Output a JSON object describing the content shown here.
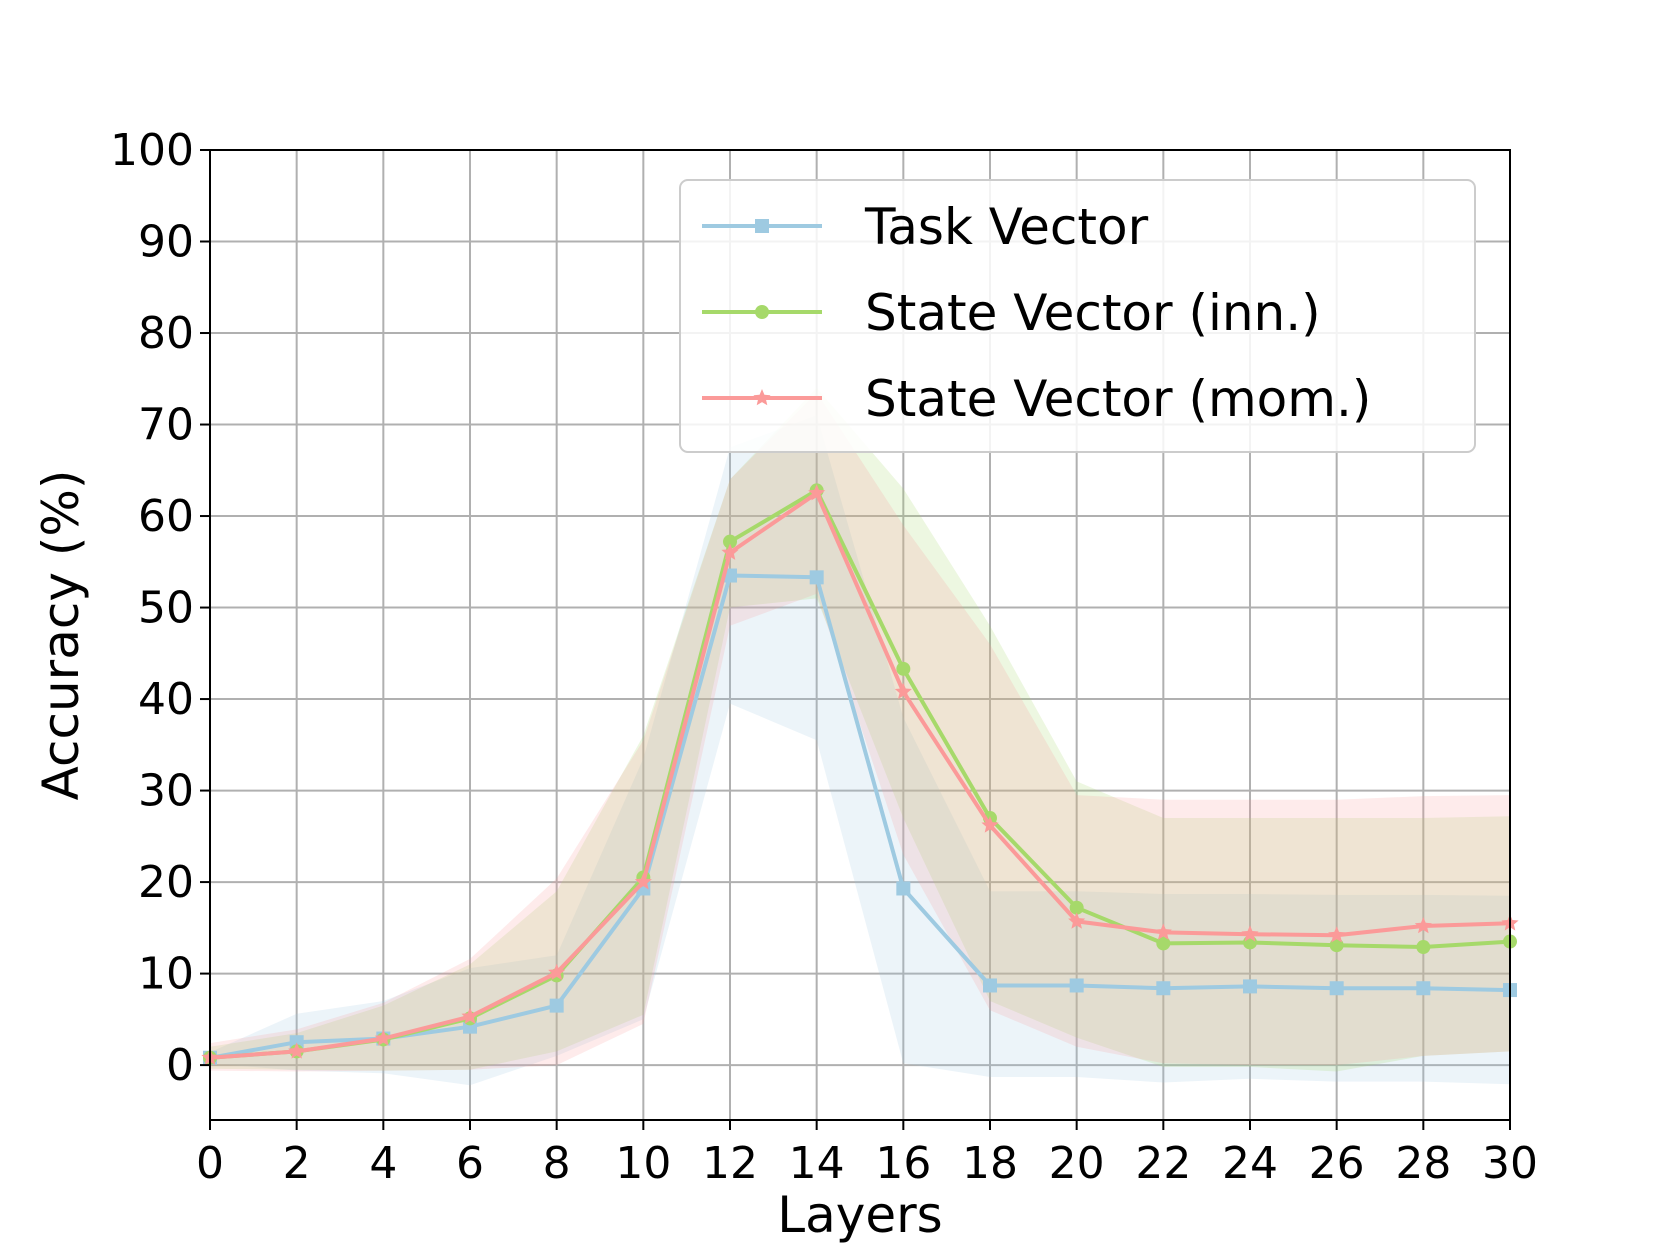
{
  "chart_data": {
    "type": "line",
    "xlabel": "Layers",
    "ylabel": "Accuracy (%)",
    "xlim": [
      0,
      30
    ],
    "ylim": [
      -6,
      100
    ],
    "xticks": [
      0,
      2,
      4,
      6,
      8,
      10,
      12,
      14,
      16,
      18,
      20,
      22,
      24,
      26,
      28,
      30
    ],
    "yticks": [
      0,
      10,
      20,
      30,
      40,
      50,
      60,
      70,
      80,
      90,
      100
    ],
    "grid": true,
    "legend_position": "top-right",
    "x": [
      0,
      2,
      4,
      6,
      8,
      10,
      12,
      14,
      16,
      18,
      20,
      22,
      24,
      26,
      28,
      30
    ],
    "series": [
      {
        "name": "Task Vector",
        "color": "#9ecae1",
        "marker": "square",
        "values": [
          0.8,
          2.5,
          2.9,
          4.2,
          6.5,
          19.3,
          53.5,
          53.3,
          19.3,
          8.7,
          8.7,
          8.4,
          8.6,
          8.4,
          8.4,
          8.2
        ],
        "band_lower": [
          0.2,
          -0.6,
          -0.9,
          -2.2,
          1.0,
          5.0,
          39.5,
          35.5,
          0.2,
          -1.3,
          -1.3,
          -1.9,
          -1.5,
          -1.8,
          -1.8,
          -2.1
        ],
        "band_upper": [
          1.4,
          5.6,
          7.0,
          10.6,
          12.0,
          33.5,
          67.5,
          71.0,
          38.0,
          19.0,
          19.0,
          18.7,
          18.7,
          18.6,
          18.6,
          18.5
        ]
      },
      {
        "name": "State Vector (inn.)",
        "color": "#a6d96a",
        "marker": "circle",
        "values": [
          0.8,
          1.5,
          2.8,
          5.1,
          9.8,
          20.5,
          57.2,
          62.8,
          43.3,
          27.0,
          17.2,
          13.3,
          13.4,
          13.1,
          12.9,
          13.5
        ],
        "band_lower": [
          -0.4,
          -0.5,
          -0.6,
          -0.5,
          1.5,
          5.5,
          50.0,
          51.0,
          27.0,
          7.0,
          3.0,
          -0.2,
          -0.2,
          -0.7,
          1.0,
          1.5
        ],
        "band_upper": [
          2.0,
          3.5,
          6.5,
          11.0,
          19.0,
          36.0,
          64.0,
          74.0,
          63.0,
          48.0,
          31.0,
          27.0,
          27.0,
          27.0,
          27.0,
          27.2
        ]
      },
      {
        "name": "State Vector (mom.)",
        "color": "#fb9a99",
        "marker": "star",
        "values": [
          0.8,
          1.5,
          2.9,
          5.3,
          10.1,
          20.0,
          56.0,
          62.5,
          40.8,
          26.2,
          15.7,
          14.5,
          14.3,
          14.2,
          15.2,
          15.5
        ],
        "band_lower": [
          -0.6,
          -0.7,
          -0.6,
          -0.5,
          0.0,
          4.5,
          48.0,
          51.5,
          23.0,
          6.0,
          2.0,
          0.2,
          0.0,
          0.0,
          1.0,
          1.5
        ],
        "band_upper": [
          2.4,
          3.9,
          6.8,
          11.6,
          20.4,
          35.5,
          64.0,
          73.5,
          59.0,
          46.0,
          29.5,
          29.0,
          29.0,
          29.0,
          29.4,
          29.5
        ]
      }
    ]
  }
}
